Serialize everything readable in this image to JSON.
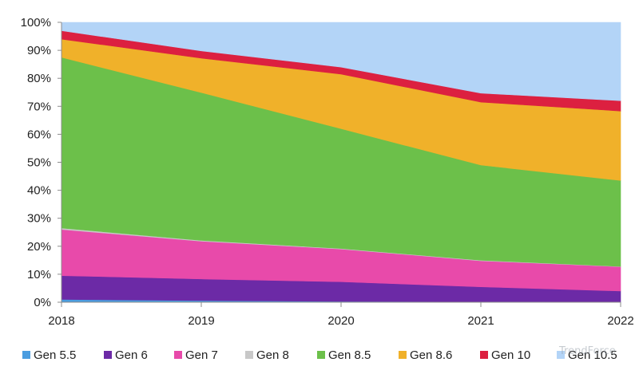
{
  "chart_data": {
    "type": "area",
    "stacked": true,
    "percent": true,
    "title": "",
    "xlabel": "",
    "ylabel": "",
    "x": [
      "2018",
      "2019",
      "2020",
      "2021",
      "2022"
    ],
    "ylim": [
      0,
      100
    ],
    "y_ticks": [
      "0%",
      "10%",
      "20%",
      "30%",
      "40%",
      "50%",
      "60%",
      "70%",
      "80%",
      "90%",
      "100%"
    ],
    "legend_position": "bottom",
    "grid": false,
    "series": [
      {
        "name": "Gen 5.5",
        "color": "#4a9de0",
        "values": [
          1.0,
          0.6,
          0.3,
          0.2,
          0.1
        ]
      },
      {
        "name": "Gen 6",
        "color": "#6c2aa6",
        "values": [
          8.5,
          7.7,
          7.0,
          5.3,
          3.9
        ]
      },
      {
        "name": "Gen 7",
        "color": "#e84aaa",
        "values": [
          16.5,
          13.5,
          11.7,
          9.3,
          8.7
        ]
      },
      {
        "name": "Gen 8",
        "color": "#c8c8c8",
        "values": [
          0.5,
          0.3,
          0.2,
          0.2,
          0.1
        ]
      },
      {
        "name": "Gen 8.5",
        "color": "#6cc04a",
        "values": [
          61.0,
          52.8,
          42.8,
          34.0,
          30.7
        ]
      },
      {
        "name": "Gen 8.6",
        "color": "#f0b12a",
        "values": [
          6.5,
          12.3,
          19.5,
          22.5,
          24.8
        ]
      },
      {
        "name": "Gen 10",
        "color": "#dc2040",
        "values": [
          3.0,
          2.6,
          2.5,
          3.2,
          3.7
        ]
      },
      {
        "name": "Gen 10.5",
        "color": "#b3d4f7",
        "values": [
          3.0,
          10.2,
          16.0,
          25.3,
          28.0
        ]
      }
    ]
  },
  "watermark": {
    "text": "TrendForce"
  }
}
